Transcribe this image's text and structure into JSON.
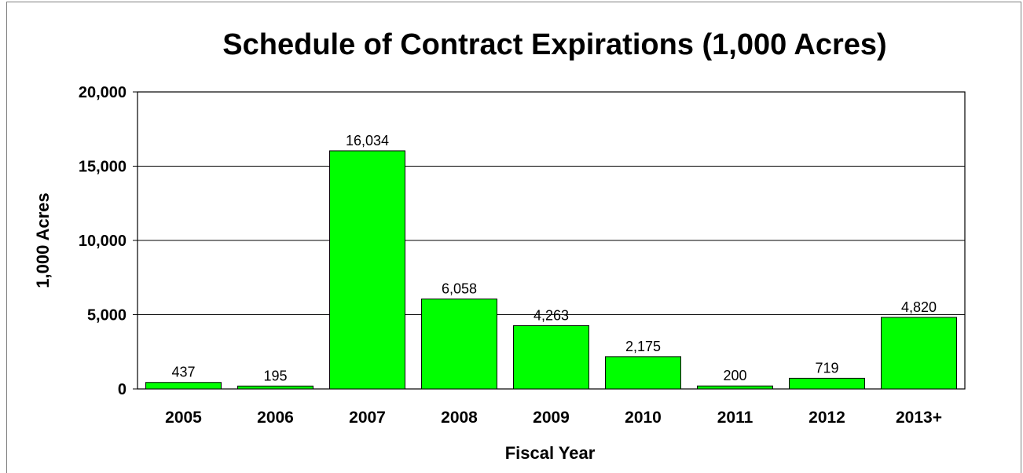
{
  "chart_data": {
    "type": "bar",
    "title": "Schedule of Contract Expirations (1,000 Acres)",
    "xlabel": "Fiscal Year",
    "ylabel": "1,000 Acres",
    "categories": [
      "2005",
      "2006",
      "2007",
      "2008",
      "2009",
      "2010",
      "2011",
      "2012",
      "2013+"
    ],
    "values": [
      437,
      195,
      16034,
      6058,
      4263,
      2175,
      200,
      719,
      4820
    ],
    "data_labels": [
      "437",
      "195",
      "16,034",
      "6,058",
      "4,263",
      "2,175",
      "200",
      "719",
      "4,820"
    ],
    "ylim": [
      0,
      20000
    ],
    "yticks": [
      0,
      5000,
      10000,
      15000,
      20000
    ],
    "ytick_labels": [
      "0",
      "5,000",
      "10,000",
      "15,000",
      "20,000"
    ],
    "grid": true,
    "legend": "none",
    "bar_color": "#00ff00",
    "bar_edge_color": "#000000"
  }
}
